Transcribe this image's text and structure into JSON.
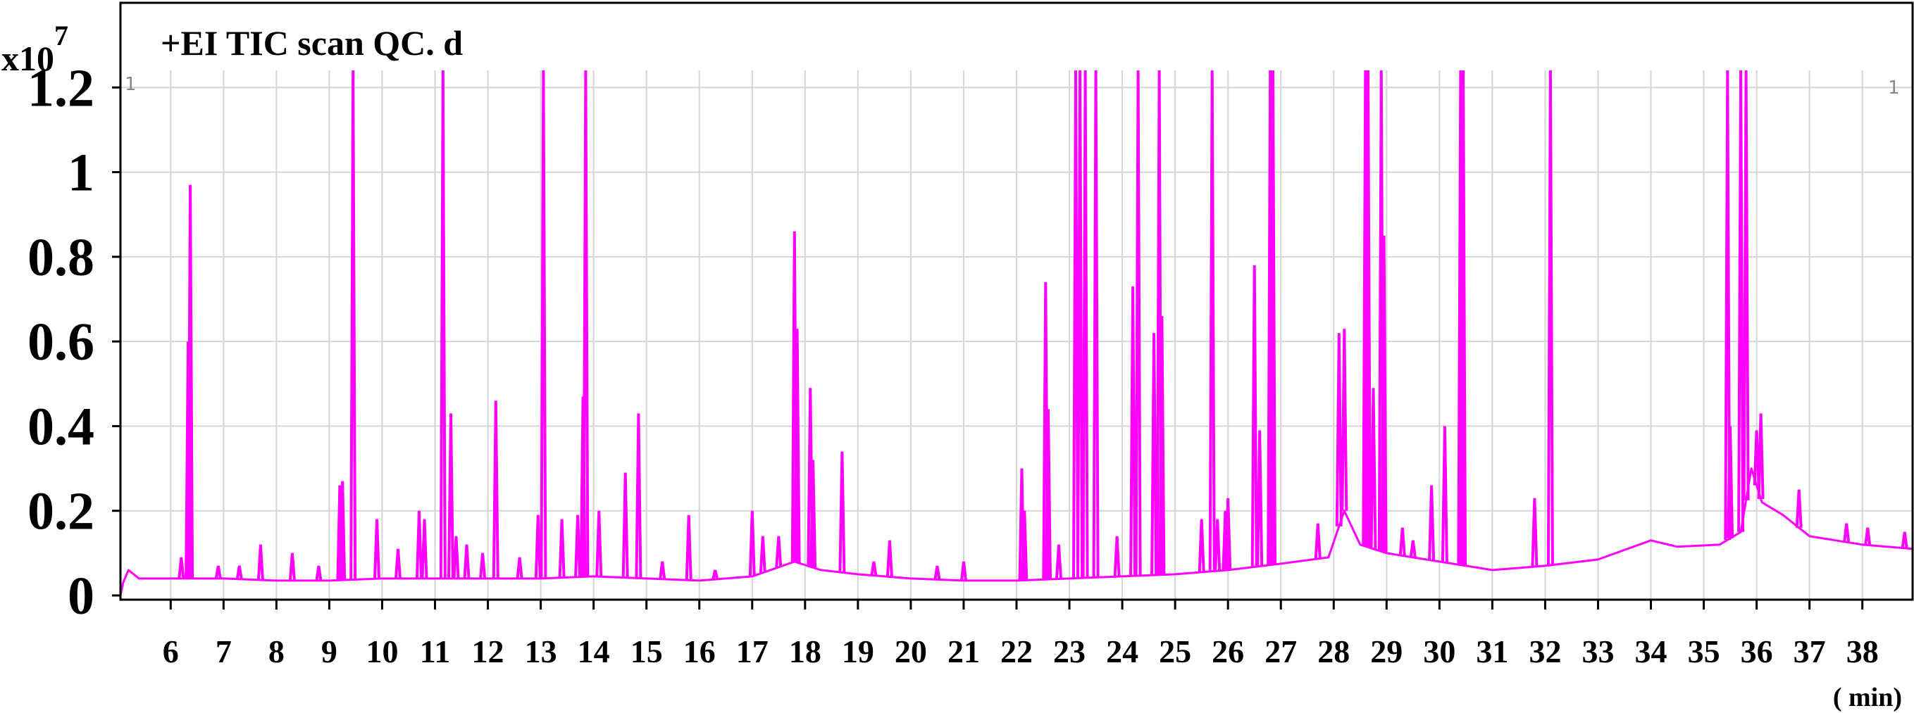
{
  "chart_data": {
    "type": "line",
    "title": "+EI TIC scan  QC. d",
    "y_multiplier_base": "x10",
    "y_multiplier_exp": "7",
    "x_unit": "( min)",
    "marker_label": "1",
    "xlim": [
      5.05,
      38.95
    ],
    "ylim": [
      -0.01,
      1.4
    ],
    "y_ticks": [
      0,
      0.2,
      0.4,
      0.6,
      0.8,
      1,
      1.2
    ],
    "y_tick_labels": [
      "0",
      "0.2",
      "0.4",
      "0.6",
      "0.8",
      "1",
      "1.2"
    ],
    "x_ticks": [
      6,
      7,
      8,
      9,
      10,
      11,
      12,
      13,
      14,
      15,
      16,
      17,
      18,
      19,
      20,
      21,
      22,
      23,
      24,
      25,
      26,
      27,
      28,
      29,
      30,
      31,
      32,
      33,
      34,
      35,
      36,
      37,
      38
    ],
    "x_tick_labels": [
      "6",
      "7",
      "8",
      "9",
      "10",
      "11",
      "12",
      "13",
      "14",
      "15",
      "16",
      "17",
      "18",
      "19",
      "20",
      "21",
      "22",
      "23",
      "24",
      "25",
      "26",
      "27",
      "28",
      "29",
      "30",
      "31",
      "32",
      "33",
      "34",
      "35",
      "36",
      "37",
      "38"
    ],
    "grid": true,
    "series": [
      {
        "color": "#ff00ff",
        "peak_color": "#cc00cc",
        "baseline": [
          [
            5.05,
            0.0
          ],
          [
            5.1,
            0.03
          ],
          [
            5.2,
            0.06
          ],
          [
            5.4,
            0.04
          ],
          [
            6.0,
            0.04
          ],
          [
            7.0,
            0.04
          ],
          [
            8.0,
            0.035
          ],
          [
            9.0,
            0.035
          ],
          [
            10.0,
            0.04
          ],
          [
            11.0,
            0.04
          ],
          [
            12.0,
            0.04
          ],
          [
            13.0,
            0.04
          ],
          [
            14.0,
            0.045
          ],
          [
            15.0,
            0.04
          ],
          [
            16.0,
            0.035
          ],
          [
            17.0,
            0.045
          ],
          [
            17.8,
            0.08
          ],
          [
            18.3,
            0.06
          ],
          [
            19.0,
            0.05
          ],
          [
            20.0,
            0.04
          ],
          [
            21.0,
            0.035
          ],
          [
            22.0,
            0.035
          ],
          [
            23.0,
            0.04
          ],
          [
            24.0,
            0.045
          ],
          [
            25.0,
            0.05
          ],
          [
            26.0,
            0.06
          ],
          [
            27.0,
            0.075
          ],
          [
            27.9,
            0.09
          ],
          [
            28.2,
            0.2
          ],
          [
            28.5,
            0.12
          ],
          [
            29.0,
            0.1
          ],
          [
            29.5,
            0.09
          ],
          [
            30.0,
            0.08
          ],
          [
            30.5,
            0.07
          ],
          [
            31.0,
            0.06
          ],
          [
            32.0,
            0.07
          ],
          [
            33.0,
            0.085
          ],
          [
            34.0,
            0.13
          ],
          [
            34.5,
            0.115
          ],
          [
            35.3,
            0.12
          ],
          [
            35.7,
            0.15
          ],
          [
            35.9,
            0.3
          ],
          [
            36.1,
            0.22
          ],
          [
            36.5,
            0.19
          ],
          [
            37.0,
            0.14
          ],
          [
            37.5,
            0.13
          ],
          [
            38.0,
            0.12
          ],
          [
            38.95,
            0.11
          ]
        ],
        "peaks": [
          [
            6.2,
            0.09
          ],
          [
            6.33,
            0.6
          ],
          [
            6.37,
            0.97
          ],
          [
            6.9,
            0.07
          ],
          [
            7.3,
            0.07
          ],
          [
            7.7,
            0.12
          ],
          [
            8.3,
            0.1
          ],
          [
            8.8,
            0.07
          ],
          [
            9.2,
            0.26
          ],
          [
            9.25,
            0.27
          ],
          [
            9.45,
            1.4
          ],
          [
            9.9,
            0.18
          ],
          [
            10.3,
            0.11
          ],
          [
            10.7,
            0.2
          ],
          [
            10.8,
            0.18
          ],
          [
            11.15,
            1.4
          ],
          [
            11.3,
            0.43
          ],
          [
            11.4,
            0.14
          ],
          [
            11.6,
            0.12
          ],
          [
            11.9,
            0.1
          ],
          [
            12.15,
            0.46
          ],
          [
            12.6,
            0.09
          ],
          [
            12.95,
            0.19
          ],
          [
            13.05,
            1.4
          ],
          [
            13.4,
            0.18
          ],
          [
            13.7,
            0.19
          ],
          [
            13.8,
            0.47
          ],
          [
            13.85,
            1.4
          ],
          [
            14.1,
            0.2
          ],
          [
            14.6,
            0.29
          ],
          [
            14.85,
            0.43
          ],
          [
            15.3,
            0.08
          ],
          [
            15.8,
            0.19
          ],
          [
            16.3,
            0.06
          ],
          [
            17.0,
            0.2
          ],
          [
            17.2,
            0.14
          ],
          [
            17.5,
            0.14
          ],
          [
            17.8,
            0.86
          ],
          [
            17.85,
            0.63
          ],
          [
            18.1,
            0.49
          ],
          [
            18.15,
            0.32
          ],
          [
            18.7,
            0.34
          ],
          [
            19.3,
            0.08
          ],
          [
            19.6,
            0.13
          ],
          [
            20.5,
            0.07
          ],
          [
            21.0,
            0.08
          ],
          [
            22.1,
            0.3
          ],
          [
            22.15,
            0.2
          ],
          [
            22.55,
            0.74
          ],
          [
            22.6,
            0.44
          ],
          [
            22.8,
            0.12
          ],
          [
            23.12,
            1.4
          ],
          [
            23.2,
            1.4
          ],
          [
            23.3,
            1.4
          ],
          [
            23.5,
            1.4
          ],
          [
            23.9,
            0.14
          ],
          [
            24.2,
            0.73
          ],
          [
            24.3,
            1.4
          ],
          [
            24.6,
            0.62
          ],
          [
            24.7,
            1.4
          ],
          [
            24.75,
            0.66
          ],
          [
            25.5,
            0.18
          ],
          [
            25.7,
            1.4
          ],
          [
            25.8,
            0.18
          ],
          [
            25.95,
            0.2
          ],
          [
            26.0,
            0.23
          ],
          [
            26.5,
            0.78
          ],
          [
            26.6,
            0.39
          ],
          [
            26.8,
            1.4
          ],
          [
            26.85,
            1.4
          ],
          [
            27.7,
            0.17
          ],
          [
            28.1,
            0.62
          ],
          [
            28.2,
            0.63
          ],
          [
            28.6,
            1.4
          ],
          [
            28.65,
            1.4
          ],
          [
            28.75,
            0.49
          ],
          [
            28.9,
            1.4
          ],
          [
            28.95,
            0.85
          ],
          [
            29.3,
            0.16
          ],
          [
            29.5,
            0.13
          ],
          [
            29.85,
            0.26
          ],
          [
            30.1,
            0.4
          ],
          [
            30.4,
            1.4
          ],
          [
            30.45,
            1.4
          ],
          [
            31.8,
            0.23
          ],
          [
            32.1,
            1.4
          ],
          [
            35.45,
            1.4
          ],
          [
            35.5,
            0.4
          ],
          [
            35.7,
            1.4
          ],
          [
            35.8,
            1.4
          ],
          [
            36.0,
            0.39
          ],
          [
            36.08,
            0.43
          ],
          [
            36.8,
            0.25
          ],
          [
            37.7,
            0.17
          ],
          [
            38.1,
            0.16
          ],
          [
            38.8,
            0.15
          ]
        ]
      }
    ]
  }
}
